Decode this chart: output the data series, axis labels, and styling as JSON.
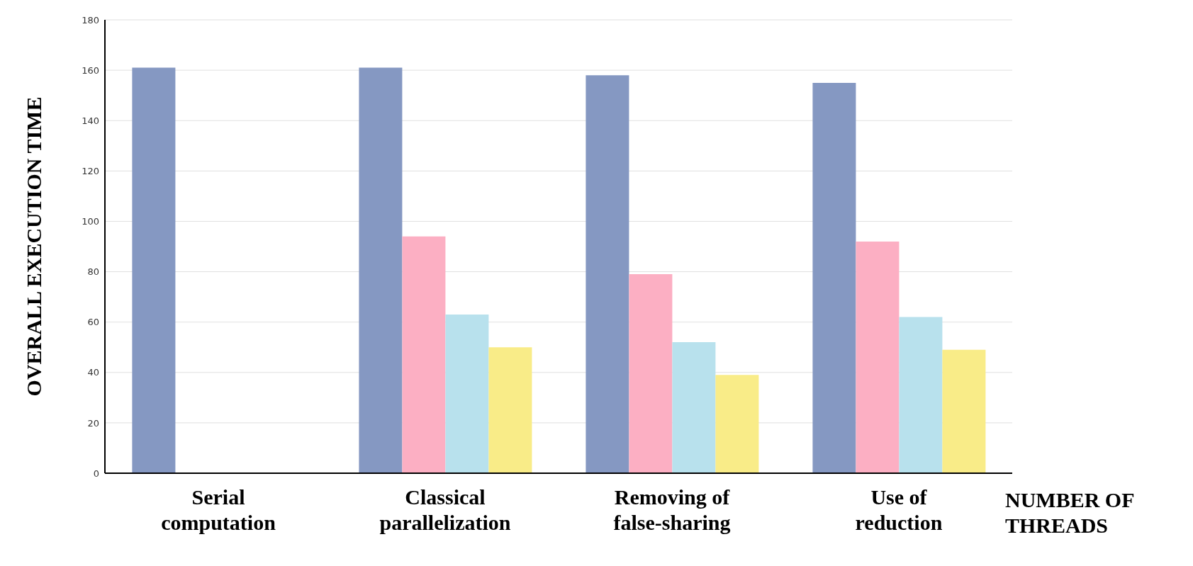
{
  "chart_data": {
    "type": "bar",
    "xlabel": "NUMBER OF THREADS",
    "ylabel": "OVERALL EXECUTION TIME",
    "categories": [
      "Serial computation",
      "Classical parallelization",
      "Removing of false-sharing",
      "Use of reduction"
    ],
    "series": [
      {
        "color": "#8598c2",
        "values": [
          161,
          161,
          158,
          155
        ]
      },
      {
        "color": "#fcafc3",
        "values": [
          null,
          94,
          79,
          92
        ]
      },
      {
        "color": "#b8e1ed",
        "values": [
          null,
          63,
          52,
          62
        ]
      },
      {
        "color": "#f9ec88",
        "values": [
          null,
          50,
          39,
          49
        ]
      }
    ],
    "ylim": [
      0,
      180
    ],
    "yticks": [
      0,
      20,
      40,
      60,
      80,
      100,
      120,
      140,
      160,
      180
    ],
    "grid": "y"
  }
}
